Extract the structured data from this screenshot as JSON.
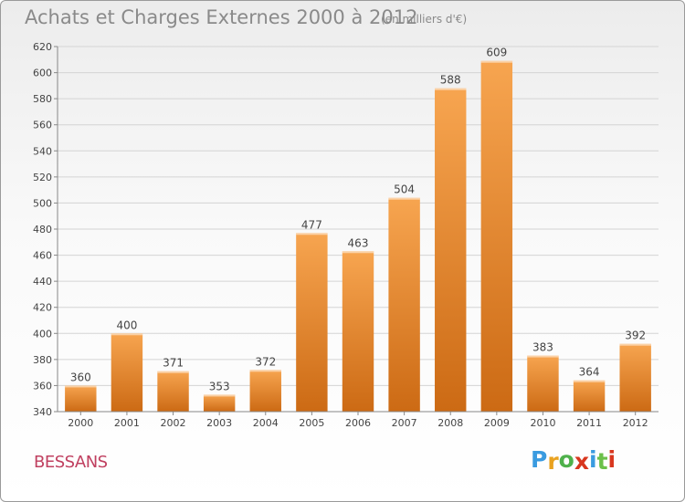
{
  "header": {
    "title": "Achats et Charges Externes 2000 à 2012",
    "unit": "(en milliers d'€)"
  },
  "footer": {
    "place": "BESSANS",
    "logo": "Proxiti"
  },
  "colors": {
    "bar_top": "#f7a550",
    "bar_bottom": "#cc6a14",
    "grid": "#d4d4d4",
    "axis_text": "#444444",
    "place": "#c04060",
    "logo_letters": [
      "#3a9be0",
      "#e9a21f",
      "#4fb14b",
      "#d8361e",
      "#3a9be0",
      "#6cc04a",
      "#d8361e"
    ]
  },
  "chart_data": {
    "type": "bar",
    "title": "Achats et Charges Externes 2000 à 2012",
    "subtitle": "(en milliers d'€)",
    "xlabel": "",
    "ylabel": "",
    "categories": [
      "2000",
      "2001",
      "2002",
      "2003",
      "2004",
      "2005",
      "2006",
      "2007",
      "2008",
      "2009",
      "2010",
      "2011",
      "2012"
    ],
    "values": [
      360,
      400,
      371,
      353,
      372,
      477,
      463,
      504,
      588,
      609,
      383,
      364,
      392
    ],
    "ylim": [
      340,
      620
    ],
    "yticks": [
      340,
      360,
      380,
      400,
      420,
      440,
      460,
      480,
      500,
      520,
      540,
      560,
      580,
      600,
      620
    ],
    "grid": true,
    "legend": "none"
  }
}
